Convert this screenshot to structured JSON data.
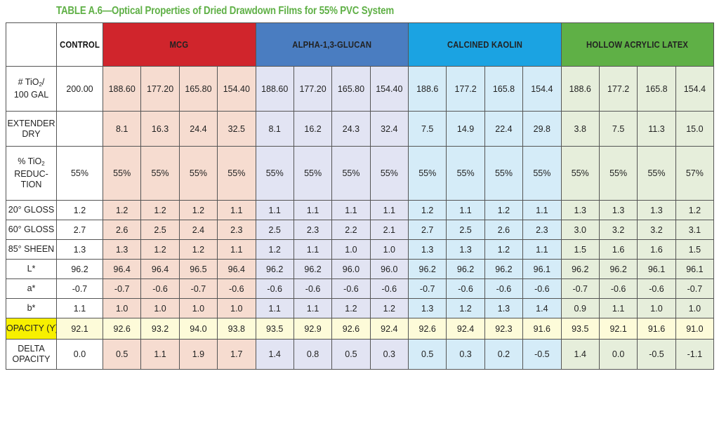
{
  "title": "TABLE A.6—Optical Properties of Dried Drawdown Films for 55% PVC System",
  "headers": {
    "control": "CONTROL",
    "groups": [
      {
        "label": "MCG",
        "color": "#d0252c"
      },
      {
        "label": "ALPHA-1,3-GLUCAN",
        "color": "#4a7dc1"
      },
      {
        "label": "CALCINED KAOLIN",
        "color": "#1ba3e2"
      },
      {
        "label": "HOLLOW ACRYLIC LATEX",
        "color": "#5fb046"
      }
    ]
  },
  "rows": [
    {
      "label": [
        "# TiO",
        "2",
        "/",
        "100 GAL"
      ],
      "control": "200.00",
      "values": [
        "188.60",
        "177.20",
        "165.80",
        "154.40",
        "188.60",
        "177.20",
        "165.80",
        "154.40",
        "188.6",
        "177.2",
        "165.8",
        "154.4",
        "188.6",
        "177.2",
        "165.8",
        "154.4"
      ]
    },
    {
      "label": [
        "EXTENDER",
        "DRY"
      ],
      "control": "",
      "values": [
        "8.1",
        "16.3",
        "24.4",
        "32.5",
        "8.1",
        "16.2",
        "24.3",
        "32.4",
        "7.5",
        "14.9",
        "22.4",
        "29.8",
        "3.8",
        "7.5",
        "11.3",
        "15.0"
      ]
    },
    {
      "label": [
        "% TiO",
        "2",
        "",
        "REDUC-",
        "TION"
      ],
      "control": "55%",
      "values": [
        "55%",
        "55%",
        "55%",
        "55%",
        "55%",
        "55%",
        "55%",
        "55%",
        "55%",
        "55%",
        "55%",
        "55%",
        "55%",
        "55%",
        "55%",
        "57%"
      ]
    },
    {
      "label": [
        "20° GLOSS"
      ],
      "control": "1.2",
      "values": [
        "1.2",
        "1.2",
        "1.2",
        "1.1",
        "1.1",
        "1.1",
        "1.1",
        "1.1",
        "1.2",
        "1.1",
        "1.2",
        "1.1",
        "1.3",
        "1.3",
        "1.3",
        "1.2"
      ]
    },
    {
      "label": [
        "60° GLOSS"
      ],
      "control": "2.7",
      "values": [
        "2.6",
        "2.5",
        "2.4",
        "2.3",
        "2.5",
        "2.3",
        "2.2",
        "2.1",
        "2.7",
        "2.5",
        "2.6",
        "2.3",
        "3.0",
        "3.2",
        "3.2",
        "3.1"
      ]
    },
    {
      "label": [
        "85° SHEEN"
      ],
      "control": "1.3",
      "values": [
        "1.3",
        "1.2",
        "1.2",
        "1.1",
        "1.2",
        "1.1",
        "1.0",
        "1.0",
        "1.3",
        "1.3",
        "1.2",
        "1.1",
        "1.5",
        "1.6",
        "1.6",
        "1.5"
      ]
    },
    {
      "label": [
        "L*"
      ],
      "control": "96.2",
      "values": [
        "96.4",
        "96.4",
        "96.5",
        "96.4",
        "96.2",
        "96.2",
        "96.0",
        "96.0",
        "96.2",
        "96.2",
        "96.2",
        "96.1",
        "96.2",
        "96.2",
        "96.1",
        "96.1"
      ]
    },
    {
      "label": [
        "a*"
      ],
      "control": "-0.7",
      "values": [
        "-0.7",
        "-0.6",
        "-0.7",
        "-0.6",
        "-0.6",
        "-0.6",
        "-0.6",
        "-0.6",
        "-0.7",
        "-0.6",
        "-0.6",
        "-0.6",
        "-0.7",
        "-0.6",
        "-0.6",
        "-0.7"
      ]
    },
    {
      "label": [
        "b*"
      ],
      "control": "1.1",
      "values": [
        "1.0",
        "1.0",
        "1.0",
        "1.0",
        "1.1",
        "1.1",
        "1.2",
        "1.2",
        "1.3",
        "1.2",
        "1.3",
        "1.4",
        "0.9",
        "1.1",
        "1.0",
        "1.0"
      ]
    },
    {
      "label": [
        "OPACITY (Y)"
      ],
      "control": "92.1",
      "highlight": true,
      "values": [
        "92.6",
        "93.2",
        "94.0",
        "93.8",
        "93.5",
        "92.9",
        "92.6",
        "92.4",
        "92.6",
        "92.4",
        "92.3",
        "91.6",
        "93.5",
        "92.1",
        "91.6",
        "91.0"
      ]
    },
    {
      "label": [
        "DELTA",
        "OPACITY"
      ],
      "control": "0.0",
      "values": [
        "0.5",
        "1.1",
        "1.9",
        "1.7",
        "1.4",
        "0.8",
        "0.5",
        "0.3",
        "0.5",
        "0.3",
        "0.2",
        "-0.5",
        "1.4",
        "0.0",
        "-0.5",
        "-1.1"
      ]
    }
  ]
}
